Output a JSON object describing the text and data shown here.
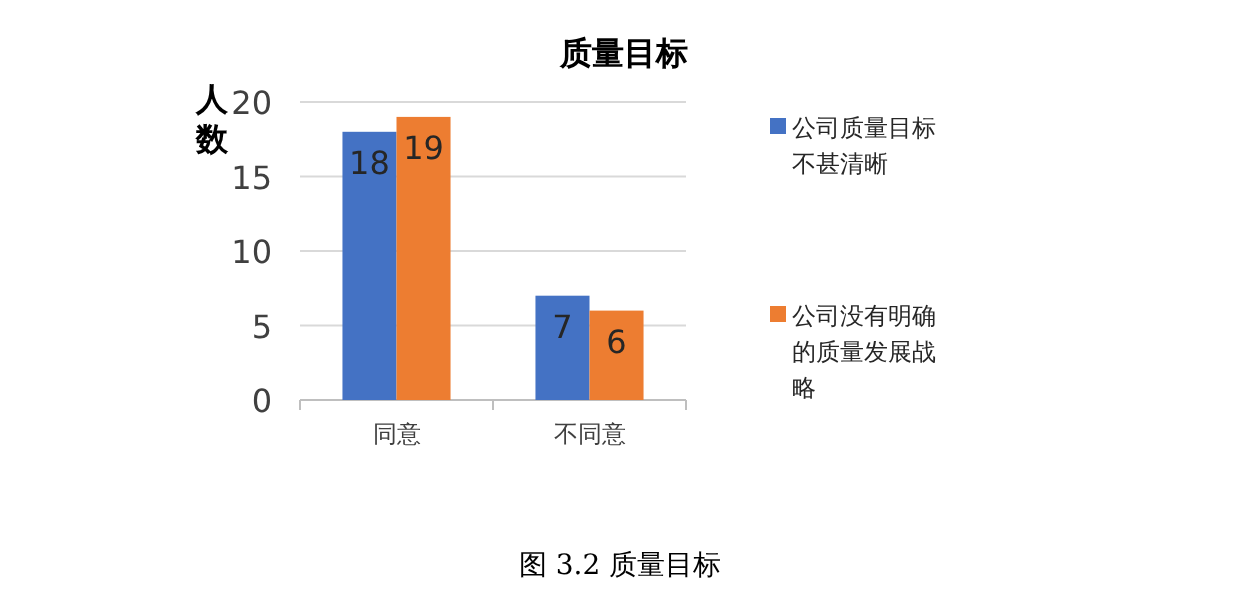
{
  "chart_data": {
    "type": "bar",
    "title": "质量目标",
    "ylabel": "人数",
    "categories": [
      "同意",
      "不同意"
    ],
    "series": [
      {
        "name": "公司质量目标不甚清晰",
        "color": "#4472c4",
        "values": [
          18,
          7
        ]
      },
      {
        "name": "公司没有明确的质量发展战略",
        "color": "#ed7d31",
        "values": [
          19,
          6
        ]
      }
    ],
    "ylim": [
      0,
      20
    ],
    "yticks": [
      0,
      5,
      10,
      15,
      20
    ],
    "grid": "y",
    "legend": "right",
    "data_labels": true,
    "annotations": [
      "图 3.2 质量目标"
    ]
  }
}
